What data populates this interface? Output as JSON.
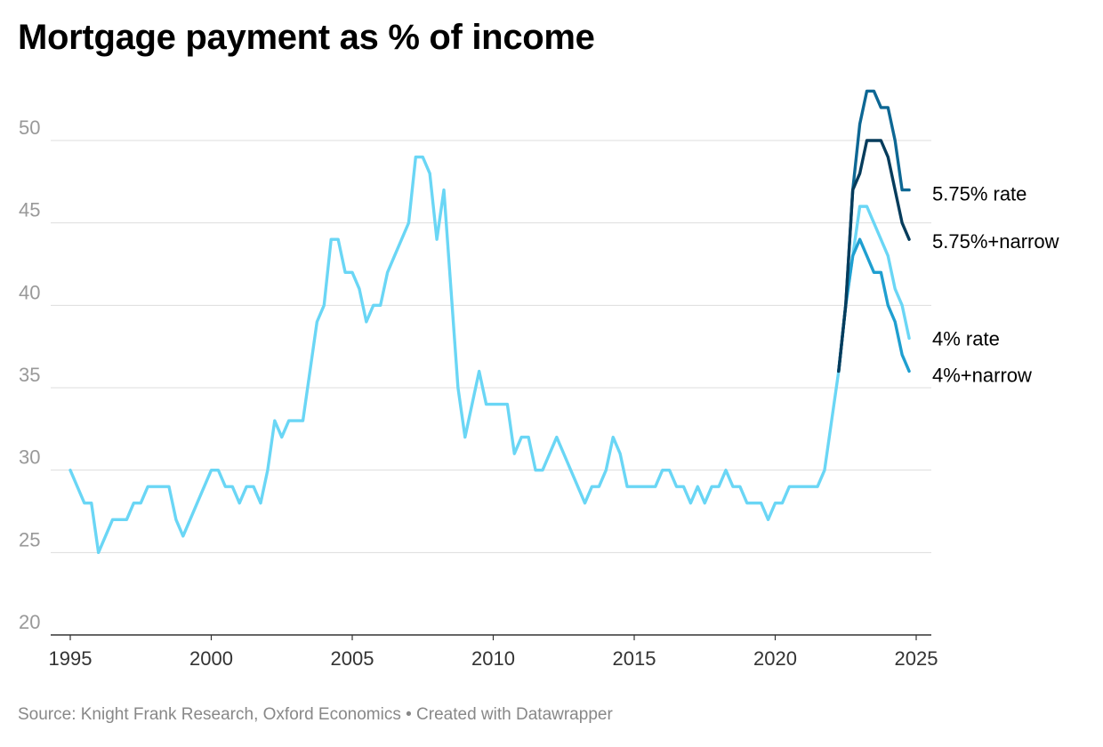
{
  "title": "Mortgage payment as % of income",
  "source": "Source: Knight Frank Research, Oxford Economics • Created with Datawrapper",
  "chart_data": {
    "type": "line",
    "title": "Mortgage payment as % of income",
    "xlabel": "",
    "ylabel": "",
    "xlim": [
      1995,
      2025
    ],
    "ylim": [
      20,
      53
    ],
    "x_ticks": [
      1995,
      2000,
      2005,
      2010,
      2015,
      2020,
      2025
    ],
    "y_ticks": [
      20,
      25,
      30,
      35,
      40,
      45,
      50
    ],
    "grid": true,
    "legend": "direct labels at line ends",
    "series": [
      {
        "name": "4% rate",
        "color": "#6ad6f5",
        "points": [
          [
            1995.0,
            30
          ],
          [
            1995.25,
            29
          ],
          [
            1995.5,
            28
          ],
          [
            1995.75,
            28
          ],
          [
            1996.0,
            25
          ],
          [
            1996.25,
            26
          ],
          [
            1996.5,
            27
          ],
          [
            1996.75,
            27
          ],
          [
            1997.0,
            27
          ],
          [
            1997.25,
            28
          ],
          [
            1997.5,
            28
          ],
          [
            1997.75,
            29
          ],
          [
            1998.0,
            29
          ],
          [
            1998.25,
            29
          ],
          [
            1998.5,
            29
          ],
          [
            1998.75,
            27
          ],
          [
            1999.0,
            26
          ],
          [
            1999.25,
            27
          ],
          [
            1999.5,
            28
          ],
          [
            1999.75,
            29
          ],
          [
            2000.0,
            30
          ],
          [
            2000.25,
            30
          ],
          [
            2000.5,
            29
          ],
          [
            2000.75,
            29
          ],
          [
            2001.0,
            28
          ],
          [
            2001.25,
            29
          ],
          [
            2001.5,
            29
          ],
          [
            2001.75,
            28
          ],
          [
            2002.0,
            30
          ],
          [
            2002.25,
            33
          ],
          [
            2002.5,
            32
          ],
          [
            2002.75,
            33
          ],
          [
            2003.0,
            33
          ],
          [
            2003.25,
            33
          ],
          [
            2003.5,
            36
          ],
          [
            2003.75,
            39
          ],
          [
            2004.0,
            40
          ],
          [
            2004.25,
            44
          ],
          [
            2004.5,
            44
          ],
          [
            2004.75,
            42
          ],
          [
            2005.0,
            42
          ],
          [
            2005.25,
            41
          ],
          [
            2005.5,
            39
          ],
          [
            2005.75,
            40
          ],
          [
            2006.0,
            40
          ],
          [
            2006.25,
            42
          ],
          [
            2006.5,
            43
          ],
          [
            2006.75,
            44
          ],
          [
            2007.0,
            45
          ],
          [
            2007.25,
            49
          ],
          [
            2007.5,
            49
          ],
          [
            2007.75,
            48
          ],
          [
            2008.0,
            44
          ],
          [
            2008.25,
            47
          ],
          [
            2008.5,
            41
          ],
          [
            2008.75,
            35
          ],
          [
            2009.0,
            32
          ],
          [
            2009.25,
            34
          ],
          [
            2009.5,
            36
          ],
          [
            2009.75,
            34
          ],
          [
            2010.0,
            34
          ],
          [
            2010.25,
            34
          ],
          [
            2010.5,
            34
          ],
          [
            2010.75,
            31
          ],
          [
            2011.0,
            32
          ],
          [
            2011.25,
            32
          ],
          [
            2011.5,
            30
          ],
          [
            2011.75,
            30
          ],
          [
            2012.0,
            31
          ],
          [
            2012.25,
            32
          ],
          [
            2012.5,
            31
          ],
          [
            2012.75,
            30
          ],
          [
            2013.0,
            29
          ],
          [
            2013.25,
            28
          ],
          [
            2013.5,
            29
          ],
          [
            2013.75,
            29
          ],
          [
            2014.0,
            30
          ],
          [
            2014.25,
            32
          ],
          [
            2014.5,
            31
          ],
          [
            2014.75,
            29
          ],
          [
            2015.0,
            29
          ],
          [
            2015.25,
            29
          ],
          [
            2015.5,
            29
          ],
          [
            2015.75,
            29
          ],
          [
            2016.0,
            30
          ],
          [
            2016.25,
            30
          ],
          [
            2016.5,
            29
          ],
          [
            2016.75,
            29
          ],
          [
            2017.0,
            28
          ],
          [
            2017.25,
            29
          ],
          [
            2017.5,
            28
          ],
          [
            2017.75,
            29
          ],
          [
            2018.0,
            29
          ],
          [
            2018.25,
            30
          ],
          [
            2018.5,
            29
          ],
          [
            2018.75,
            29
          ],
          [
            2019.0,
            28
          ],
          [
            2019.25,
            28
          ],
          [
            2019.5,
            28
          ],
          [
            2019.75,
            27
          ],
          [
            2020.0,
            28
          ],
          [
            2020.25,
            28
          ],
          [
            2020.5,
            29
          ],
          [
            2020.75,
            29
          ],
          [
            2021.0,
            29
          ],
          [
            2021.25,
            29
          ],
          [
            2021.5,
            29
          ],
          [
            2021.75,
            30
          ],
          [
            2022.0,
            33
          ],
          [
            2022.25,
            36
          ],
          [
            2022.5,
            40
          ],
          [
            2022.75,
            43
          ],
          [
            2023.0,
            46
          ],
          [
            2023.25,
            46
          ],
          [
            2023.5,
            45
          ],
          [
            2023.75,
            44
          ],
          [
            2024.0,
            43
          ],
          [
            2024.25,
            41
          ],
          [
            2024.5,
            40
          ],
          [
            2024.75,
            38
          ]
        ]
      },
      {
        "name": "4%+narrow",
        "color": "#1f9fd0",
        "points": [
          [
            2022.25,
            36
          ],
          [
            2022.5,
            40
          ],
          [
            2022.75,
            43
          ],
          [
            2023.0,
            44
          ],
          [
            2023.25,
            43
          ],
          [
            2023.5,
            42
          ],
          [
            2023.75,
            42
          ],
          [
            2024.0,
            40
          ],
          [
            2024.25,
            39
          ],
          [
            2024.5,
            37
          ],
          [
            2024.75,
            36
          ]
        ]
      },
      {
        "name": "5.75% rate",
        "color": "#0d6794",
        "points": [
          [
            2022.25,
            36
          ],
          [
            2022.5,
            40
          ],
          [
            2022.75,
            47
          ],
          [
            2023.0,
            51
          ],
          [
            2023.25,
            53
          ],
          [
            2023.5,
            53
          ],
          [
            2023.75,
            52
          ],
          [
            2024.0,
            52
          ],
          [
            2024.25,
            50
          ],
          [
            2024.5,
            47
          ],
          [
            2024.75,
            47
          ]
        ]
      },
      {
        "name": "5.75%+narrow",
        "color": "#063c5c",
        "points": [
          [
            2022.25,
            36
          ],
          [
            2022.5,
            40
          ],
          [
            2022.75,
            47
          ],
          [
            2023.0,
            48
          ],
          [
            2023.25,
            50
          ],
          [
            2023.5,
            50
          ],
          [
            2023.75,
            50
          ],
          [
            2024.0,
            49
          ],
          [
            2024.25,
            47
          ],
          [
            2024.5,
            45
          ],
          [
            2024.75,
            44
          ]
        ]
      }
    ]
  }
}
